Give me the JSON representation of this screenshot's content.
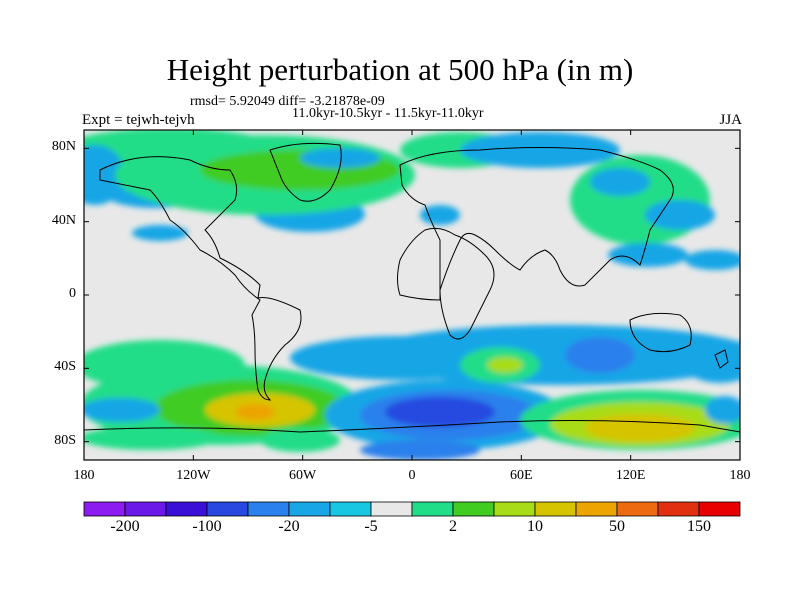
{
  "title": "Height perturbation at 500 hPa (in m)",
  "stats_line": "rmsd= 5.92049 diff= -3.21878e-09",
  "period_line": "11.0kyr-10.5kyr - 11.5kyr-11.0kyr",
  "expt_label": "Expt = tejwh-tejvh",
  "season_label": "JJA",
  "map": {
    "projection": "cylindrical-equidistant",
    "lon_range": [
      -180,
      180
    ],
    "lat_range": [
      -90,
      90
    ],
    "y_ticks": [
      {
        "label": "80N"
      },
      {
        "label": "40N"
      },
      {
        "label": "0"
      },
      {
        "label": "40S"
      },
      {
        "label": "80S"
      }
    ],
    "x_ticks": [
      {
        "label": "180"
      },
      {
        "label": "120W"
      },
      {
        "label": "60W"
      },
      {
        "label": "0"
      },
      {
        "label": "60E"
      },
      {
        "label": "120E"
      },
      {
        "label": "180"
      }
    ]
  },
  "colorbar": {
    "colors": [
      "#8c1cf0",
      "#6a19e8",
      "#3a10d6",
      "#2848e0",
      "#2a80ec",
      "#19a6e6",
      "#18c8e2",
      "#e8e8e8",
      "#22dd88",
      "#40cc20",
      "#a8dc18",
      "#d6c400",
      "#eca400",
      "#ee6a10",
      "#e03010",
      "#e80000"
    ],
    "labels": [
      "-200",
      "-100",
      "-20",
      "-5",
      "2",
      "10",
      "50",
      "150"
    ]
  }
}
